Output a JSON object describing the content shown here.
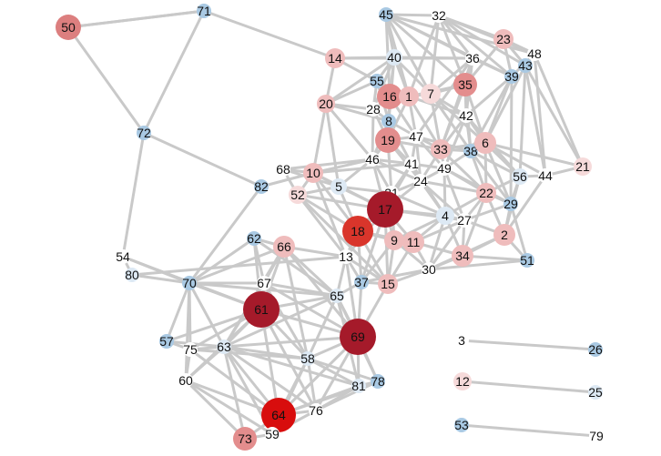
{
  "colors": {
    "background": "#ffffff",
    "edge": "#c9c9c9",
    "label": "#111111"
  },
  "nodes": [
    {
      "id": "71",
      "level": "blue-light"
    },
    {
      "id": "50",
      "level": "red-mid"
    },
    {
      "id": "72",
      "level": "blue-light"
    },
    {
      "id": "14",
      "level": "red-pale"
    },
    {
      "id": "45",
      "level": "blue-light"
    },
    {
      "id": "32",
      "level": "white"
    },
    {
      "id": "23",
      "level": "red-pale"
    },
    {
      "id": "48",
      "level": "white"
    },
    {
      "id": "43",
      "level": "blue-light"
    },
    {
      "id": "39",
      "level": "blue-light"
    },
    {
      "id": "40",
      "level": "blue-pale"
    },
    {
      "id": "36",
      "level": "white"
    },
    {
      "id": "55",
      "level": "blue-light"
    },
    {
      "id": "16",
      "level": "red-light"
    },
    {
      "id": "1",
      "level": "red-pale"
    },
    {
      "id": "7",
      "level": "red-faint"
    },
    {
      "id": "35",
      "level": "red-light"
    },
    {
      "id": "20",
      "level": "red-pale"
    },
    {
      "id": "28",
      "level": "white"
    },
    {
      "id": "8",
      "level": "blue-light"
    },
    {
      "id": "42",
      "level": "white"
    },
    {
      "id": "19",
      "level": "red-light"
    },
    {
      "id": "47",
      "level": "white"
    },
    {
      "id": "33",
      "level": "red-pale"
    },
    {
      "id": "38",
      "level": "blue-light"
    },
    {
      "id": "6",
      "level": "red-pale"
    },
    {
      "id": "21",
      "level": "red-faint"
    },
    {
      "id": "68",
      "level": "white"
    },
    {
      "id": "10",
      "level": "red-pale"
    },
    {
      "id": "46",
      "level": "white"
    },
    {
      "id": "41",
      "level": "white"
    },
    {
      "id": "49",
      "level": "white"
    },
    {
      "id": "56",
      "level": "blue-pale"
    },
    {
      "id": "44",
      "level": "white"
    },
    {
      "id": "82",
      "level": "blue-light"
    },
    {
      "id": "5",
      "level": "blue-pale"
    },
    {
      "id": "52",
      "level": "red-faint"
    },
    {
      "id": "24",
      "level": "white"
    },
    {
      "id": "31",
      "level": "white"
    },
    {
      "id": "22",
      "level": "red-pale"
    },
    {
      "id": "29",
      "level": "blue-light"
    },
    {
      "id": "17",
      "level": "red-darkest"
    },
    {
      "id": "4",
      "level": "blue-pale"
    },
    {
      "id": "27",
      "level": "white"
    },
    {
      "id": "18",
      "level": "red-strong"
    },
    {
      "id": "2",
      "level": "red-pale"
    },
    {
      "id": "62",
      "level": "blue-light"
    },
    {
      "id": "66",
      "level": "red-pale"
    },
    {
      "id": "9",
      "level": "red-pale"
    },
    {
      "id": "11",
      "level": "red-pale"
    },
    {
      "id": "34",
      "level": "red-pale"
    },
    {
      "id": "13",
      "level": "white"
    },
    {
      "id": "54",
      "level": "white"
    },
    {
      "id": "80",
      "level": "blue-pale"
    },
    {
      "id": "51",
      "level": "blue-light"
    },
    {
      "id": "30",
      "level": "white"
    },
    {
      "id": "70",
      "level": "blue-light"
    },
    {
      "id": "67",
      "level": "white"
    },
    {
      "id": "37",
      "level": "blue-light"
    },
    {
      "id": "15",
      "level": "red-pale"
    },
    {
      "id": "65",
      "level": "blue-pale"
    },
    {
      "id": "61",
      "level": "red-darkest"
    },
    {
      "id": "69",
      "level": "red-darkest"
    },
    {
      "id": "57",
      "level": "blue-light"
    },
    {
      "id": "75",
      "level": "white"
    },
    {
      "id": "63",
      "level": "blue-pale"
    },
    {
      "id": "3",
      "level": "white"
    },
    {
      "id": "26",
      "level": "blue-light"
    },
    {
      "id": "58",
      "level": "blue-pale"
    },
    {
      "id": "60",
      "level": "white"
    },
    {
      "id": "78",
      "level": "blue-light"
    },
    {
      "id": "81",
      "level": "blue-pale"
    },
    {
      "id": "12",
      "level": "red-faint"
    },
    {
      "id": "25",
      "level": "blue-pale"
    },
    {
      "id": "76",
      "level": "white"
    },
    {
      "id": "64",
      "level": "red-vivid"
    },
    {
      "id": "53",
      "level": "blue-light"
    },
    {
      "id": "79",
      "level": "white"
    },
    {
      "id": "73",
      "level": "red-light"
    },
    {
      "id": "59",
      "level": "white"
    }
  ],
  "edges": [
    [
      "50",
      "71"
    ],
    [
      "50",
      "72"
    ],
    [
      "71",
      "72"
    ],
    [
      "71",
      "14"
    ],
    [
      "72",
      "54"
    ],
    [
      "72",
      "82"
    ],
    [
      "14",
      "40"
    ],
    [
      "14",
      "36"
    ],
    [
      "50",
      "71"
    ],
    [
      "82",
      "10"
    ],
    [
      "82",
      "70"
    ],
    [
      "54",
      "70"
    ],
    [
      "54",
      "61"
    ],
    [
      "80",
      "70"
    ],
    [
      "80",
      "13"
    ],
    [
      "54",
      "80"
    ],
    [
      "3",
      "26"
    ],
    [
      "12",
      "25"
    ],
    [
      "53",
      "79"
    ],
    [
      "45",
      "32"
    ],
    [
      "45",
      "40"
    ],
    [
      "45",
      "48"
    ],
    [
      "45",
      "39"
    ],
    [
      "45",
      "36"
    ],
    [
      "45",
      "7"
    ],
    [
      "45",
      "16"
    ],
    [
      "45",
      "1"
    ],
    [
      "45",
      "35"
    ],
    [
      "32",
      "23"
    ],
    [
      "32",
      "48"
    ],
    [
      "32",
      "43"
    ],
    [
      "32",
      "39"
    ],
    [
      "32",
      "36"
    ],
    [
      "32",
      "7"
    ],
    [
      "32",
      "1"
    ],
    [
      "32",
      "35"
    ],
    [
      "23",
      "48"
    ],
    [
      "23",
      "43"
    ],
    [
      "23",
      "35"
    ],
    [
      "23",
      "39"
    ],
    [
      "48",
      "43"
    ],
    [
      "48",
      "39"
    ],
    [
      "48",
      "21"
    ],
    [
      "48",
      "44"
    ],
    [
      "43",
      "44"
    ],
    [
      "43",
      "56"
    ],
    [
      "43",
      "6"
    ],
    [
      "39",
      "6"
    ],
    [
      "39",
      "42"
    ],
    [
      "39",
      "38"
    ],
    [
      "39",
      "29"
    ],
    [
      "40",
      "36"
    ],
    [
      "40",
      "55"
    ],
    [
      "40",
      "16"
    ],
    [
      "40",
      "1"
    ],
    [
      "40",
      "7"
    ],
    [
      "40",
      "20"
    ],
    [
      "40",
      "28"
    ],
    [
      "40",
      "8"
    ],
    [
      "36",
      "35"
    ],
    [
      "36",
      "7"
    ],
    [
      "36",
      "42"
    ],
    [
      "36",
      "39"
    ],
    [
      "36",
      "47"
    ],
    [
      "36",
      "33"
    ],
    [
      "55",
      "16"
    ],
    [
      "55",
      "20"
    ],
    [
      "55",
      "28"
    ],
    [
      "55",
      "8"
    ],
    [
      "55",
      "1"
    ],
    [
      "16",
      "1"
    ],
    [
      "16",
      "7"
    ],
    [
      "16",
      "8"
    ],
    [
      "16",
      "19"
    ],
    [
      "16",
      "47"
    ],
    [
      "16",
      "28"
    ],
    [
      "1",
      "7"
    ],
    [
      "1",
      "35"
    ],
    [
      "1",
      "19"
    ],
    [
      "1",
      "42"
    ],
    [
      "1",
      "47"
    ],
    [
      "1",
      "33"
    ],
    [
      "7",
      "35"
    ],
    [
      "7",
      "42"
    ],
    [
      "7",
      "33"
    ],
    [
      "7",
      "38"
    ],
    [
      "7",
      "6"
    ],
    [
      "35",
      "42"
    ],
    [
      "35",
      "6"
    ],
    [
      "35",
      "38"
    ],
    [
      "35",
      "33"
    ],
    [
      "20",
      "28"
    ],
    [
      "20",
      "8"
    ],
    [
      "20",
      "10"
    ],
    [
      "20",
      "46"
    ],
    [
      "20",
      "5"
    ],
    [
      "28",
      "8"
    ],
    [
      "28",
      "19"
    ],
    [
      "28",
      "46"
    ],
    [
      "8",
      "19"
    ],
    [
      "8",
      "47"
    ],
    [
      "8",
      "46"
    ],
    [
      "8",
      "41"
    ],
    [
      "42",
      "6"
    ],
    [
      "42",
      "33"
    ],
    [
      "42",
      "38"
    ],
    [
      "42",
      "49"
    ],
    [
      "42",
      "56"
    ],
    [
      "19",
      "47"
    ],
    [
      "19",
      "33"
    ],
    [
      "19",
      "46"
    ],
    [
      "19",
      "41"
    ],
    [
      "19",
      "24"
    ],
    [
      "19",
      "31"
    ],
    [
      "47",
      "33"
    ],
    [
      "47",
      "41"
    ],
    [
      "47",
      "49"
    ],
    [
      "47",
      "24"
    ],
    [
      "47",
      "38"
    ],
    [
      "33",
      "38"
    ],
    [
      "33",
      "49"
    ],
    [
      "33",
      "6"
    ],
    [
      "33",
      "22"
    ],
    [
      "33",
      "24"
    ],
    [
      "38",
      "6"
    ],
    [
      "38",
      "56"
    ],
    [
      "38",
      "22"
    ],
    [
      "38",
      "29"
    ],
    [
      "38",
      "49"
    ],
    [
      "6",
      "56"
    ],
    [
      "6",
      "44"
    ],
    [
      "6",
      "21"
    ],
    [
      "6",
      "22"
    ],
    [
      "6",
      "29"
    ],
    [
      "56",
      "44"
    ],
    [
      "56",
      "29"
    ],
    [
      "56",
      "22"
    ],
    [
      "56",
      "2"
    ],
    [
      "44",
      "21"
    ],
    [
      "44",
      "2"
    ],
    [
      "21",
      "43"
    ],
    [
      "68",
      "10"
    ],
    [
      "68",
      "46"
    ],
    [
      "68",
      "5"
    ],
    [
      "68",
      "52"
    ],
    [
      "10",
      "5"
    ],
    [
      "10",
      "52"
    ],
    [
      "10",
      "46"
    ],
    [
      "10",
      "41"
    ],
    [
      "10",
      "17"
    ],
    [
      "10",
      "18"
    ],
    [
      "10",
      "13"
    ],
    [
      "46",
      "41"
    ],
    [
      "46",
      "5"
    ],
    [
      "46",
      "31"
    ],
    [
      "46",
      "24"
    ],
    [
      "46",
      "17"
    ],
    [
      "41",
      "49"
    ],
    [
      "41",
      "24"
    ],
    [
      "41",
      "31"
    ],
    [
      "41",
      "17"
    ],
    [
      "41",
      "4"
    ],
    [
      "49",
      "24"
    ],
    [
      "49",
      "22"
    ],
    [
      "49",
      "4"
    ],
    [
      "49",
      "27"
    ],
    [
      "49",
      "29"
    ],
    [
      "5",
      "52"
    ],
    [
      "5",
      "31"
    ],
    [
      "5",
      "17"
    ],
    [
      "5",
      "18"
    ],
    [
      "52",
      "17"
    ],
    [
      "52",
      "18"
    ],
    [
      "52",
      "13"
    ],
    [
      "52",
      "15"
    ],
    [
      "24",
      "31"
    ],
    [
      "24",
      "17"
    ],
    [
      "24",
      "4"
    ],
    [
      "24",
      "27"
    ],
    [
      "24",
      "22"
    ],
    [
      "31",
      "17"
    ],
    [
      "31",
      "4"
    ],
    [
      "31",
      "9"
    ],
    [
      "31",
      "18"
    ],
    [
      "22",
      "29"
    ],
    [
      "22",
      "27"
    ],
    [
      "22",
      "2"
    ],
    [
      "22",
      "4"
    ],
    [
      "22",
      "34"
    ],
    [
      "29",
      "2"
    ],
    [
      "29",
      "27"
    ],
    [
      "29",
      "51"
    ],
    [
      "17",
      "18"
    ],
    [
      "17",
      "9"
    ],
    [
      "17",
      "11"
    ],
    [
      "17",
      "4"
    ],
    [
      "17",
      "13"
    ],
    [
      "17",
      "15"
    ],
    [
      "17",
      "37"
    ],
    [
      "17",
      "27"
    ],
    [
      "4",
      "27"
    ],
    [
      "4",
      "9"
    ],
    [
      "4",
      "11"
    ],
    [
      "4",
      "34"
    ],
    [
      "4",
      "30"
    ],
    [
      "27",
      "2"
    ],
    [
      "27",
      "34"
    ],
    [
      "27",
      "11"
    ],
    [
      "27",
      "30"
    ],
    [
      "18",
      "9"
    ],
    [
      "18",
      "13"
    ],
    [
      "18",
      "15"
    ],
    [
      "18",
      "37"
    ],
    [
      "18",
      "11"
    ],
    [
      "2",
      "34"
    ],
    [
      "2",
      "51"
    ],
    [
      "2",
      "30"
    ],
    [
      "9",
      "11"
    ],
    [
      "9",
      "15"
    ],
    [
      "9",
      "37"
    ],
    [
      "9",
      "30"
    ],
    [
      "11",
      "34"
    ],
    [
      "11",
      "30"
    ],
    [
      "11",
      "15"
    ],
    [
      "34",
      "30"
    ],
    [
      "34",
      "51"
    ],
    [
      "13",
      "15"
    ],
    [
      "13",
      "37"
    ],
    [
      "13",
      "66"
    ],
    [
      "13",
      "65"
    ],
    [
      "13",
      "69"
    ],
    [
      "30",
      "51"
    ],
    [
      "30",
      "15"
    ],
    [
      "30",
      "37"
    ],
    [
      "15",
      "37"
    ],
    [
      "37",
      "65"
    ],
    [
      "37",
      "69"
    ],
    [
      "15",
      "69"
    ],
    [
      "62",
      "66"
    ],
    [
      "62",
      "70"
    ],
    [
      "62",
      "61"
    ],
    [
      "62",
      "67"
    ],
    [
      "62",
      "65"
    ],
    [
      "66",
      "70"
    ],
    [
      "66",
      "61"
    ],
    [
      "66",
      "67"
    ],
    [
      "66",
      "65"
    ],
    [
      "66",
      "69"
    ],
    [
      "66",
      "63"
    ],
    [
      "66",
      "58"
    ],
    [
      "70",
      "67"
    ],
    [
      "70",
      "61"
    ],
    [
      "70",
      "57"
    ],
    [
      "70",
      "75"
    ],
    [
      "70",
      "63"
    ],
    [
      "70",
      "60"
    ],
    [
      "70",
      "65"
    ],
    [
      "67",
      "61"
    ],
    [
      "67",
      "65"
    ],
    [
      "67",
      "69"
    ],
    [
      "67",
      "63"
    ],
    [
      "67",
      "58"
    ],
    [
      "65",
      "61"
    ],
    [
      "65",
      "69"
    ],
    [
      "65",
      "58"
    ],
    [
      "65",
      "63"
    ],
    [
      "65",
      "81"
    ],
    [
      "65",
      "78"
    ],
    [
      "61",
      "69"
    ],
    [
      "61",
      "57"
    ],
    [
      "61",
      "75"
    ],
    [
      "61",
      "63"
    ],
    [
      "61",
      "58"
    ],
    [
      "61",
      "60"
    ],
    [
      "61",
      "64"
    ],
    [
      "61",
      "76"
    ],
    [
      "69",
      "58"
    ],
    [
      "69",
      "81"
    ],
    [
      "69",
      "78"
    ],
    [
      "69",
      "76"
    ],
    [
      "69",
      "64"
    ],
    [
      "69",
      "63"
    ],
    [
      "57",
      "75"
    ],
    [
      "57",
      "63"
    ],
    [
      "75",
      "63"
    ],
    [
      "75",
      "60"
    ],
    [
      "75",
      "64"
    ],
    [
      "75",
      "58"
    ],
    [
      "63",
      "58"
    ],
    [
      "63",
      "60"
    ],
    [
      "63",
      "64"
    ],
    [
      "63",
      "73"
    ],
    [
      "63",
      "59"
    ],
    [
      "63",
      "76"
    ],
    [
      "63",
      "81"
    ],
    [
      "58",
      "81"
    ],
    [
      "58",
      "78"
    ],
    [
      "58",
      "76"
    ],
    [
      "58",
      "64"
    ],
    [
      "58",
      "59"
    ],
    [
      "60",
      "64"
    ],
    [
      "60",
      "73"
    ],
    [
      "60",
      "59"
    ],
    [
      "81",
      "78"
    ],
    [
      "81",
      "76"
    ],
    [
      "81",
      "64"
    ],
    [
      "78",
      "76"
    ],
    [
      "78",
      "64"
    ],
    [
      "76",
      "64"
    ],
    [
      "76",
      "59"
    ],
    [
      "64",
      "73"
    ],
    [
      "64",
      "59"
    ],
    [
      "73",
      "59"
    ],
    [
      "20",
      "14"
    ],
    [
      "55",
      "14"
    ]
  ]
}
